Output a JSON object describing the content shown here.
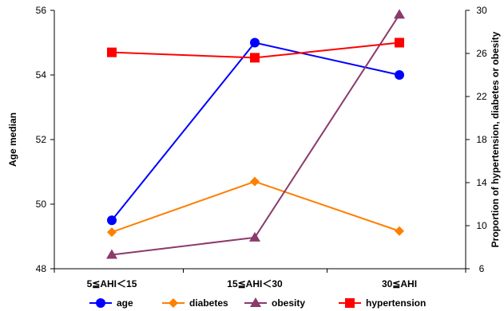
{
  "chart_data": {
    "type": "line",
    "categories": [
      "5≦AHI＜15",
      "15≦AHI＜30",
      "30≦AHI"
    ],
    "y_left": {
      "label": "Age median",
      "ylim": [
        48,
        56
      ],
      "ticks": [
        48,
        50,
        52,
        54,
        56
      ]
    },
    "y_right": {
      "label": "Proportion of hypertension, diabetes or obesity",
      "ylim": [
        6,
        30
      ],
      "ticks": [
        6,
        10,
        14,
        18,
        22,
        26,
        30
      ]
    },
    "series": [
      {
        "name": "age",
        "axis": "left",
        "color": "#0000ff",
        "marker": "circle",
        "values": [
          49.5,
          55.0,
          54.0
        ]
      },
      {
        "name": "diabetes",
        "axis": "right",
        "color": "#ff7f00",
        "marker": "diamond",
        "values": [
          9.4,
          14.1,
          9.5
        ]
      },
      {
        "name": "obesity",
        "axis": "right",
        "color": "#8b3a6b",
        "marker": "triangle",
        "values": [
          7.3,
          8.9,
          29.6
        ]
      },
      {
        "name": "hypertension",
        "axis": "right",
        "color": "#ff0000",
        "marker": "square",
        "values": [
          26.1,
          25.6,
          27.0
        ]
      }
    ],
    "grid": false,
    "legend_position": "bottom"
  }
}
